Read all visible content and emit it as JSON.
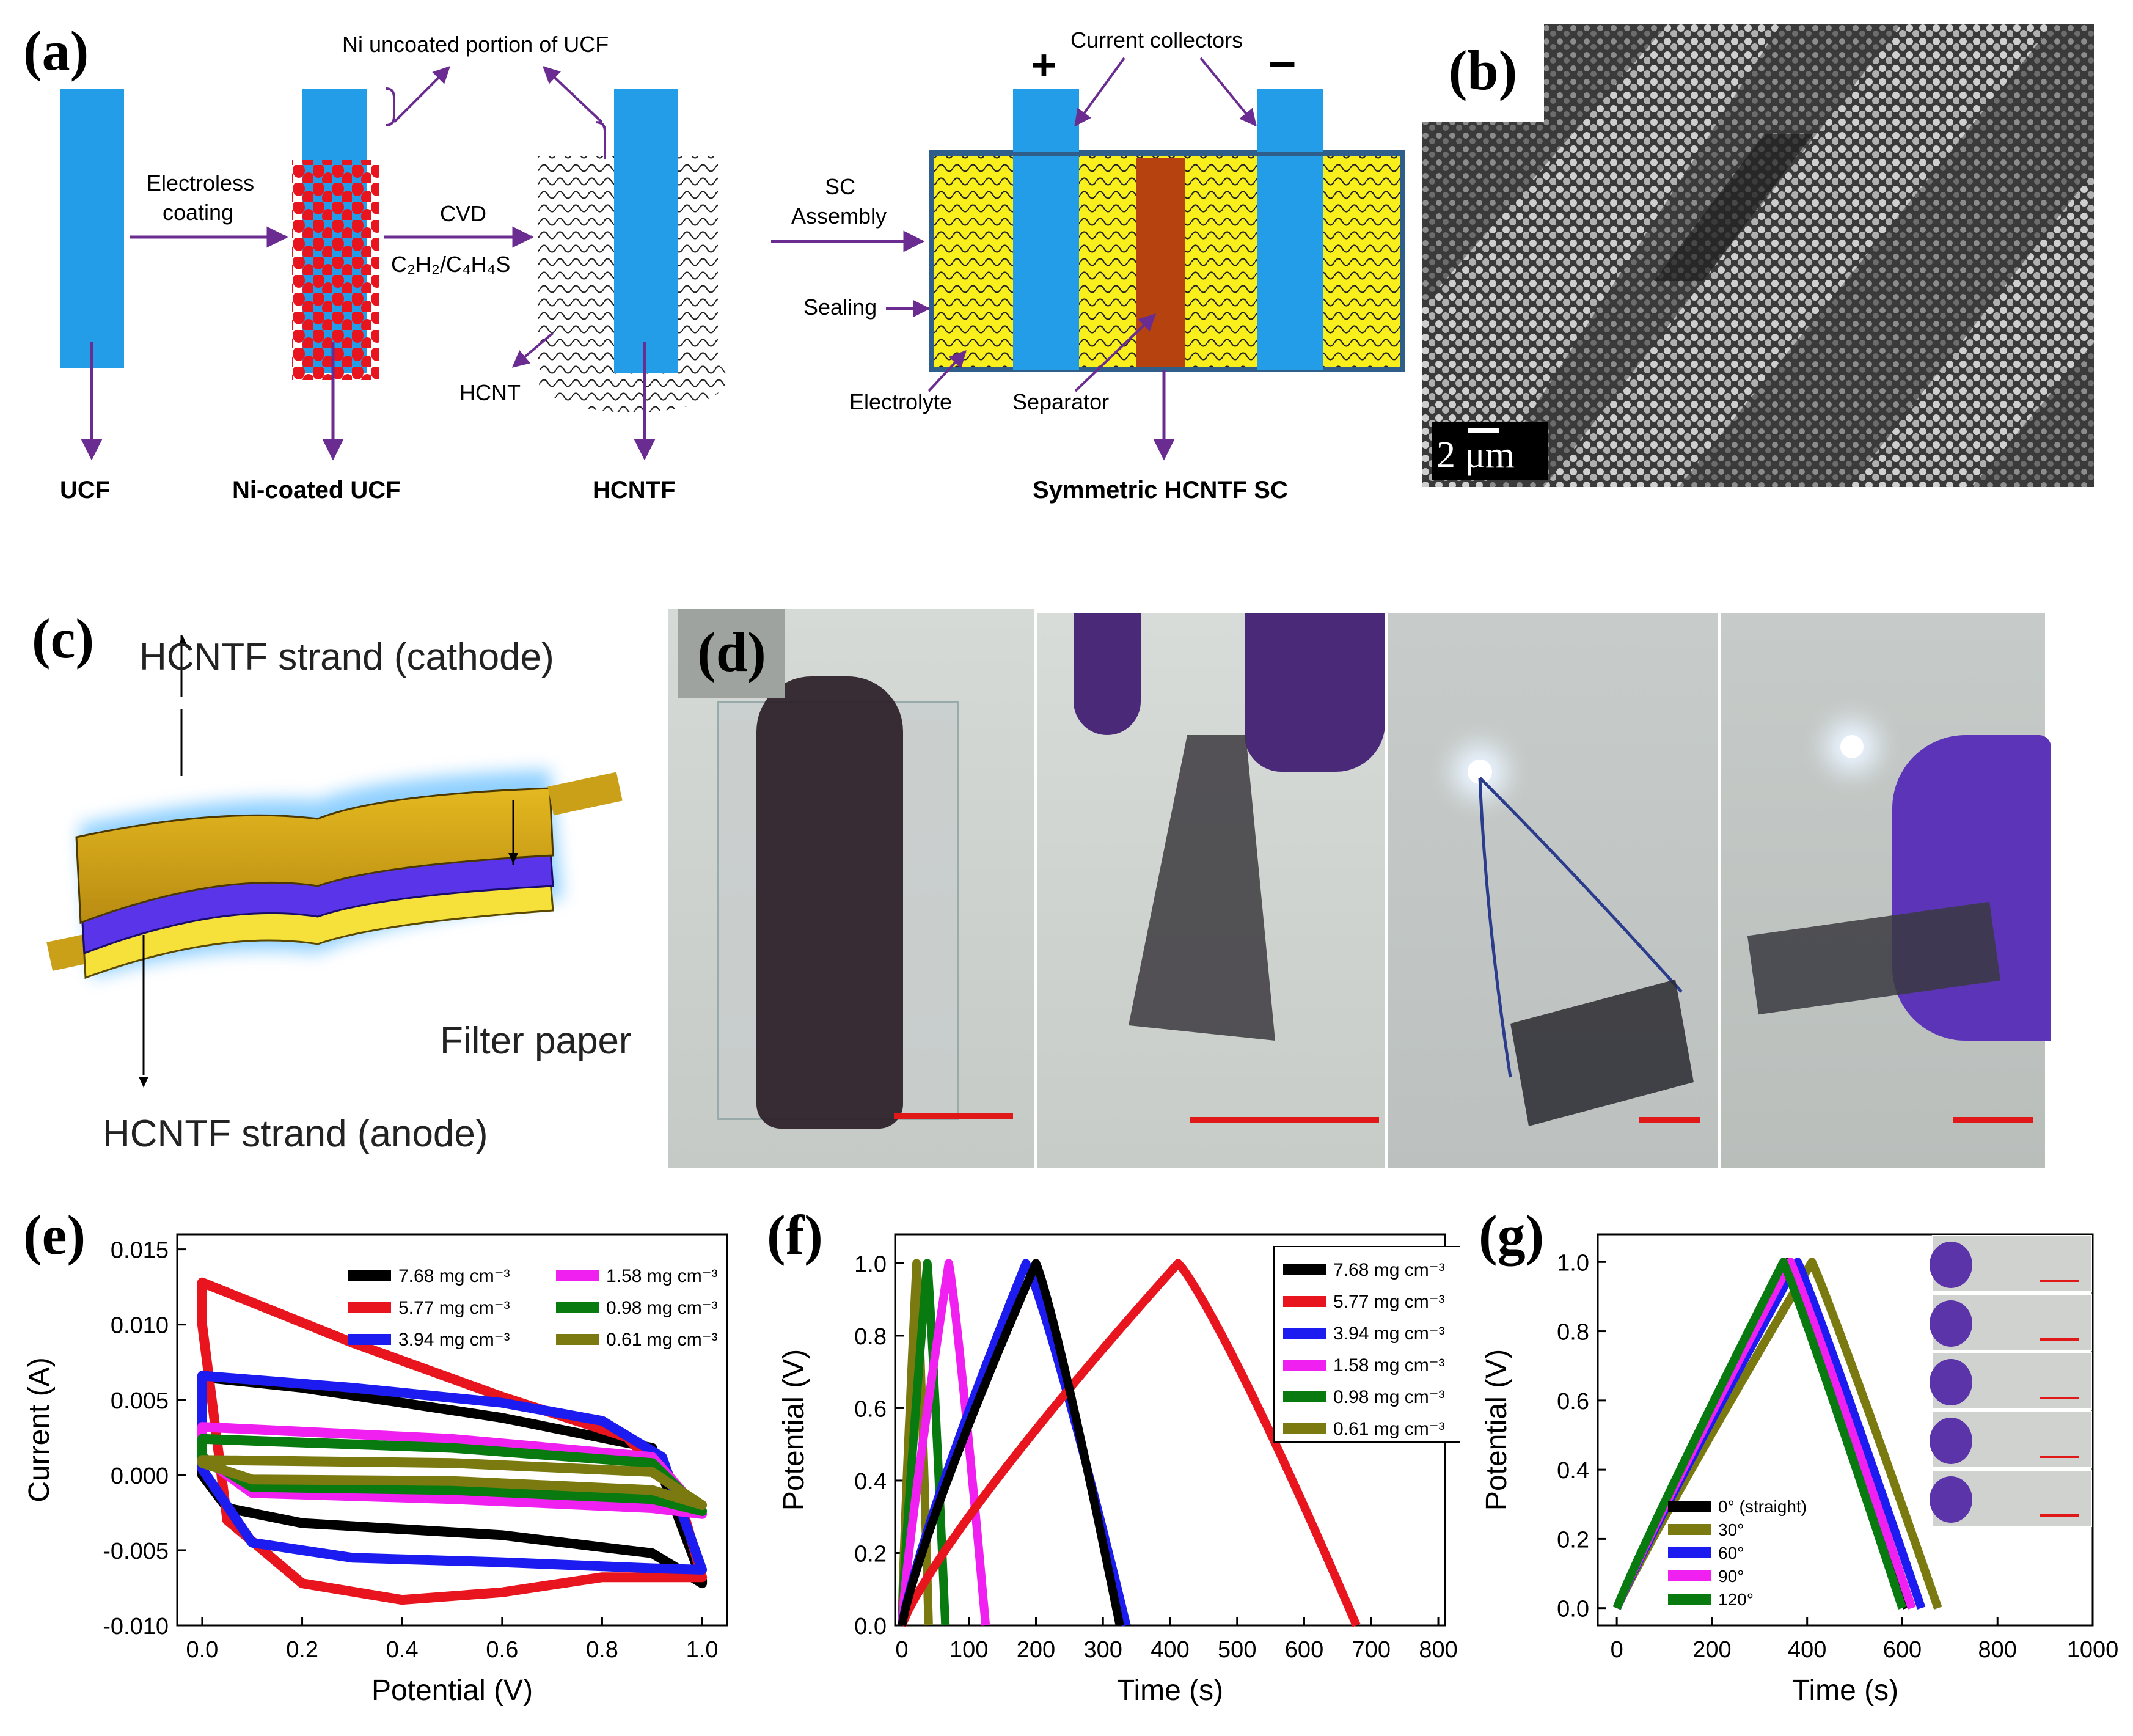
{
  "panels": {
    "a": {
      "label": "(a)",
      "steps": [
        "UCF",
        "Ni-coated UCF",
        "HCNTF",
        "Symmetric HCNTF SC"
      ],
      "arrow1": [
        "Electroless",
        "coating"
      ],
      "arrow2_top": "CVD",
      "arrow2_formula": "C₂H₂/C₄H₄S",
      "arrow3": [
        "SC",
        "Assembly"
      ],
      "ni_uncoated": "Ni uncoated portion of UCF",
      "hcnt": "HCNT",
      "current_collectors": "Current collectors",
      "plus": "+",
      "minus": "−",
      "sealing": "Sealing",
      "electrolyte": "Electrolyte",
      "separator": "Separator",
      "colors": {
        "fiber": "#239de8",
        "ni": "#e8141e",
        "electrolyte": "#f8ef1c",
        "separator": "#b5420f",
        "arrow": "#6a2c91"
      }
    },
    "b": {
      "label": "(b)",
      "scale": "2 μm"
    },
    "c": {
      "label": "(c)",
      "cathode": "HCNTF strand (cathode)",
      "filter": "Filter paper",
      "anode": "HCNTF strand (anode)"
    },
    "d": {
      "label": "(d)"
    },
    "e": {
      "label": "(e)"
    },
    "f": {
      "label": "(f)"
    },
    "g": {
      "label": "(g)"
    }
  },
  "chart_data": [
    {
      "id": "e",
      "type": "line",
      "xlabel": "Potential (V)",
      "ylabel": "Current (A)",
      "xlim": [
        -0.05,
        1.05
      ],
      "ylim": [
        -0.01,
        0.016
      ],
      "xticks": [
        "0.0",
        "0.2",
        "0.4",
        "0.6",
        "0.8",
        "1.0"
      ],
      "yticks": [
        "-0.010",
        "-0.005",
        "0.000",
        "0.005",
        "0.010",
        "0.015"
      ],
      "series": [
        {
          "name": "7.68 mg cm⁻³",
          "color": "#000000",
          "upper": [
            [
              0,
              0.0065
            ],
            [
              0.2,
              0.0058
            ],
            [
              0.6,
              0.0038
            ],
            [
              0.9,
              0.0018
            ],
            [
              1.0,
              -0.007
            ]
          ],
          "lower": [
            [
              0,
              0.0
            ],
            [
              0.05,
              -0.0022
            ],
            [
              0.2,
              -0.0032
            ],
            [
              0.6,
              -0.004
            ],
            [
              0.9,
              -0.0052
            ],
            [
              1.0,
              -0.0072
            ]
          ]
        },
        {
          "name": "5.77 mg cm⁻³",
          "color": "#e8141e",
          "upper": [
            [
              0,
              0.0128
            ],
            [
              0.3,
              0.0088
            ],
            [
              0.6,
              0.0052
            ],
            [
              0.85,
              0.0025
            ],
            [
              0.95,
              -0.001
            ],
            [
              1.0,
              -0.0068
            ]
          ],
          "lower": [
            [
              0,
              0.01
            ],
            [
              0.05,
              -0.003
            ],
            [
              0.2,
              -0.0072
            ],
            [
              0.4,
              -0.0083
            ],
            [
              0.6,
              -0.0078
            ],
            [
              0.8,
              -0.0068
            ],
            [
              1.0,
              -0.0068
            ]
          ]
        },
        {
          "name": "3.94 mg cm⁻³",
          "color": "#1c1cf0",
          "upper": [
            [
              0,
              0.0066
            ],
            [
              0.3,
              0.0058
            ],
            [
              0.6,
              0.0048
            ],
            [
              0.8,
              0.0036
            ],
            [
              0.92,
              0.0012
            ],
            [
              1.0,
              -0.0063
            ]
          ],
          "lower": [
            [
              0,
              0.0004
            ],
            [
              0.1,
              -0.0045
            ],
            [
              0.3,
              -0.0055
            ],
            [
              0.6,
              -0.0058
            ],
            [
              0.9,
              -0.0062
            ],
            [
              1.0,
              -0.0063
            ]
          ]
        },
        {
          "name": "1.58 mg cm⁻³",
          "color": "#f020f0",
          "upper": [
            [
              0,
              0.0032
            ],
            [
              0.5,
              0.0024
            ],
            [
              0.9,
              0.0012
            ],
            [
              1.0,
              -0.0026
            ]
          ],
          "lower": [
            [
              0,
              0.0012
            ],
            [
              0.1,
              -0.0012
            ],
            [
              0.5,
              -0.0016
            ],
            [
              0.9,
              -0.0022
            ],
            [
              1.0,
              -0.0026
            ]
          ]
        },
        {
          "name": "0.98 mg cm⁻³",
          "color": "#087a10",
          "upper": [
            [
              0,
              0.0024
            ],
            [
              0.5,
              0.0018
            ],
            [
              0.9,
              0.0008
            ],
            [
              1.0,
              -0.0024
            ]
          ],
          "lower": [
            [
              0,
              0.0012
            ],
            [
              0.1,
              -0.0008
            ],
            [
              0.5,
              -0.001
            ],
            [
              0.9,
              -0.0016
            ],
            [
              1.0,
              -0.0024
            ]
          ]
        },
        {
          "name": "0.61 mg cm⁻³",
          "color": "#7a7a10",
          "upper": [
            [
              0,
              0.001
            ],
            [
              0.5,
              0.0008
            ],
            [
              0.9,
              0.0002
            ],
            [
              1.0,
              -0.002
            ]
          ],
          "lower": [
            [
              0,
              0.0008
            ],
            [
              0.1,
              -0.0003
            ],
            [
              0.5,
              -0.0004
            ],
            [
              0.9,
              -0.001
            ],
            [
              1.0,
              -0.002
            ]
          ]
        }
      ]
    },
    {
      "id": "f",
      "type": "line",
      "xlabel": "Time (s)",
      "ylabel": "Potential (V)",
      "xlim": [
        -10,
        810
      ],
      "ylim": [
        0,
        1.08
      ],
      "xticks": [
        "0",
        "100",
        "200",
        "300",
        "400",
        "500",
        "600",
        "700",
        "800"
      ],
      "yticks": [
        "0.0",
        "0.2",
        "0.4",
        "0.6",
        "0.8",
        "1.0"
      ],
      "series": [
        {
          "name": "7.68 mg cm⁻³",
          "color": "#000000",
          "peak": 200,
          "end": 325
        },
        {
          "name": "5.77 mg cm⁻³",
          "color": "#e8141e",
          "peak": 412,
          "end": 678
        },
        {
          "name": "3.94 mg cm⁻³",
          "color": "#1c1cf0",
          "peak": 185,
          "end": 335
        },
        {
          "name": "1.58 mg cm⁻³",
          "color": "#f020f0",
          "peak": 70,
          "end": 125
        },
        {
          "name": "0.98 mg cm⁻³",
          "color": "#087a10",
          "peak": 38,
          "end": 65
        },
        {
          "name": "0.61 mg cm⁻³",
          "color": "#7a7a10",
          "peak": 22,
          "end": 40
        }
      ]
    },
    {
      "id": "g",
      "type": "line",
      "xlabel": "Time (s)",
      "ylabel": "Potential (V)",
      "xlim": [
        -40,
        1000
      ],
      "ylim": [
        -0.05,
        1.08
      ],
      "xticks": [
        "0",
        "200",
        "400",
        "600",
        "800",
        "1000"
      ],
      "yticks": [
        "0.0",
        "0.2",
        "0.4",
        "0.6",
        "0.8",
        "1.0"
      ],
      "series": [
        {
          "name": "0° (straight)",
          "color": "#000000",
          "peak": 360,
          "end": 610
        },
        {
          "name": "30°",
          "color": "#7a7a10",
          "peak": 410,
          "end": 675
        },
        {
          "name": "60°",
          "color": "#1c1cf0",
          "peak": 380,
          "end": 640
        },
        {
          "name": "90°",
          "color": "#f020f0",
          "peak": 365,
          "end": 620
        },
        {
          "name": "120°",
          "color": "#087a10",
          "peak": 350,
          "end": 600
        }
      ]
    }
  ]
}
